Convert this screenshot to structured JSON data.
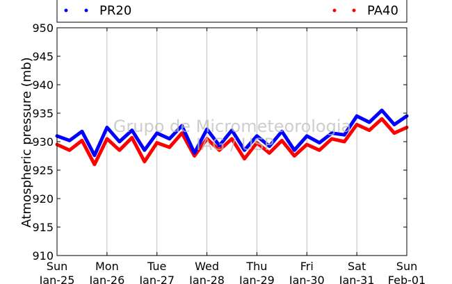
{
  "chart_data": {
    "type": "line",
    "ylabel": "Atmospheric pressure (mb)",
    "ylim": [
      910,
      950
    ],
    "yticks": [
      910,
      915,
      920,
      925,
      930,
      935,
      940,
      945,
      950
    ],
    "xlim": [
      0,
      7
    ],
    "xticks": [
      {
        "day": "Sun",
        "date": "Jan-25"
      },
      {
        "day": "Mon",
        "date": "Jan-26"
      },
      {
        "day": "Tue",
        "date": "Jan-27"
      },
      {
        "day": "Wed",
        "date": "Jan-28"
      },
      {
        "day": "Thu",
        "date": "Jan-29"
      },
      {
        "day": "Fri",
        "date": "Jan-30"
      },
      {
        "day": "Sat",
        "date": "Jan-31"
      },
      {
        "day": "Sun",
        "date": "Feb-01"
      }
    ],
    "grid": "vertical",
    "legend_position": "top",
    "watermark": [
      "Grupo de Micrometeorologia",
      "IAG / USP"
    ],
    "series": [
      {
        "name": "PR20",
        "color": "#0000ff",
        "x": [
          0,
          0.25,
          0.5,
          0.75,
          1.0,
          1.25,
          1.5,
          1.75,
          2.0,
          2.25,
          2.5,
          2.75,
          3.0,
          3.25,
          3.5,
          3.75,
          4.0,
          4.25,
          4.5,
          4.75,
          5.0,
          5.25,
          5.5,
          5.75,
          6.0,
          6.25,
          6.5,
          6.75,
          7.0
        ],
        "y": [
          931.0,
          930.2,
          931.8,
          927.6,
          932.5,
          930.0,
          932.0,
          928.5,
          931.5,
          930.5,
          932.8,
          928.0,
          932.2,
          929.3,
          932.0,
          928.5,
          931.0,
          929.2,
          931.8,
          928.5,
          931.0,
          929.8,
          931.5,
          931.2,
          934.5,
          933.4,
          935.5,
          933.0,
          934.5
        ]
      },
      {
        "name": "PA40",
        "color": "#ff0000",
        "x": [
          0,
          0.25,
          0.5,
          0.75,
          1.0,
          1.25,
          1.5,
          1.75,
          2.0,
          2.25,
          2.5,
          2.75,
          3.0,
          3.25,
          3.5,
          3.75,
          4.0,
          4.25,
          4.5,
          4.75,
          5.0,
          5.25,
          5.5,
          5.75,
          6.0,
          6.25,
          6.5,
          6.75,
          7.0
        ],
        "y": [
          929.5,
          928.5,
          930.2,
          926.0,
          930.5,
          928.5,
          930.7,
          926.5,
          929.8,
          929.0,
          931.5,
          927.5,
          930.5,
          928.5,
          930.5,
          927.0,
          929.8,
          928.0,
          930.2,
          927.5,
          929.5,
          928.5,
          930.5,
          930.0,
          933.0,
          932.0,
          934.0,
          931.5,
          932.5
        ]
      }
    ]
  }
}
